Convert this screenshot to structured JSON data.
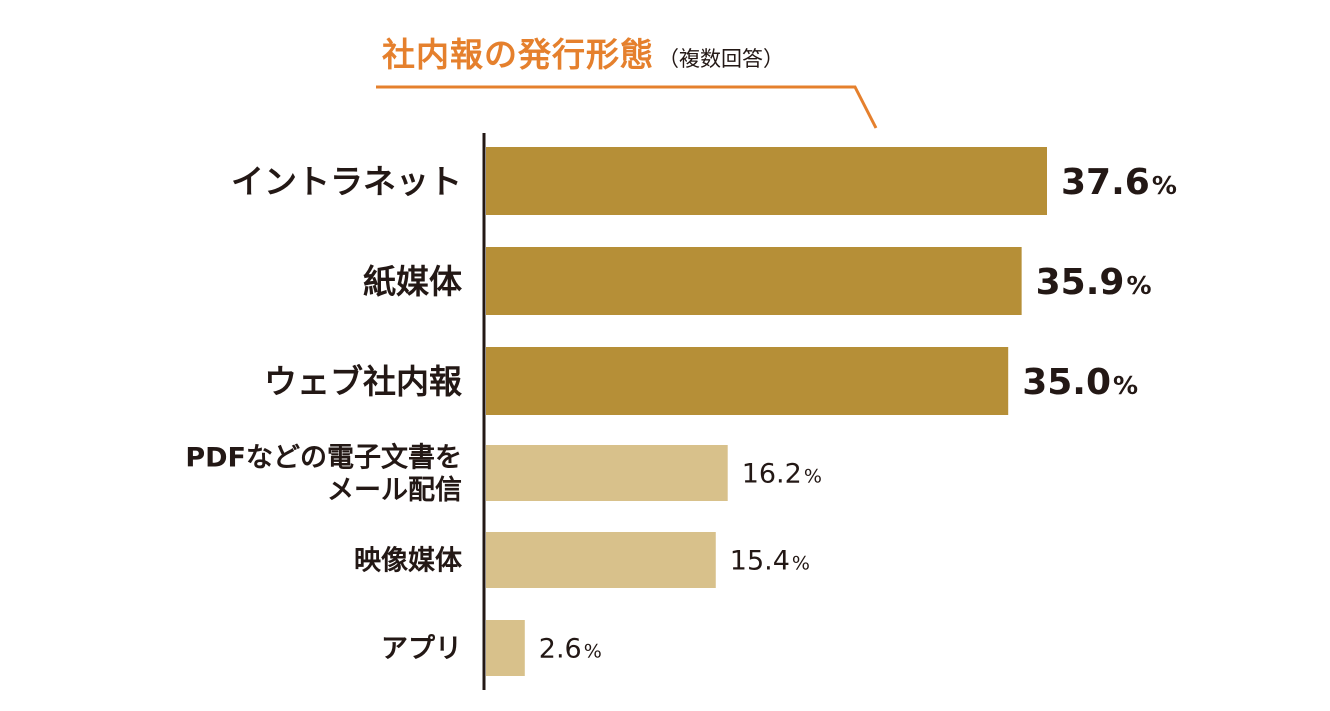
{
  "chart_data": {
    "type": "bar",
    "orientation": "horizontal",
    "title": "社内報の発行形態",
    "subtitle": "（複数回答）",
    "categories": [
      [
        "イントラネット"
      ],
      [
        "紙媒体"
      ],
      [
        "ウェブ社内報"
      ],
      [
        "PDFなどの電子文書を",
        "メール配信"
      ],
      [
        "映像媒体"
      ],
      [
        "アプリ"
      ]
    ],
    "values": [
      37.6,
      35.9,
      35.0,
      16.2,
      15.4,
      2.6
    ],
    "value_labels": [
      "37.6",
      "35.9",
      "35.0",
      "16.2",
      "15.4",
      "2.6"
    ],
    "unit": "%",
    "emphasis": [
      true,
      true,
      true,
      false,
      false,
      false
    ],
    "xlim": [
      0,
      40
    ],
    "grid": false,
    "legend": "none",
    "colors": {
      "bar_strong": "#b68f37",
      "bar_light": "#d8c18b",
      "title": "#e5802d",
      "text": "#231815",
      "axis": "#231815"
    }
  }
}
